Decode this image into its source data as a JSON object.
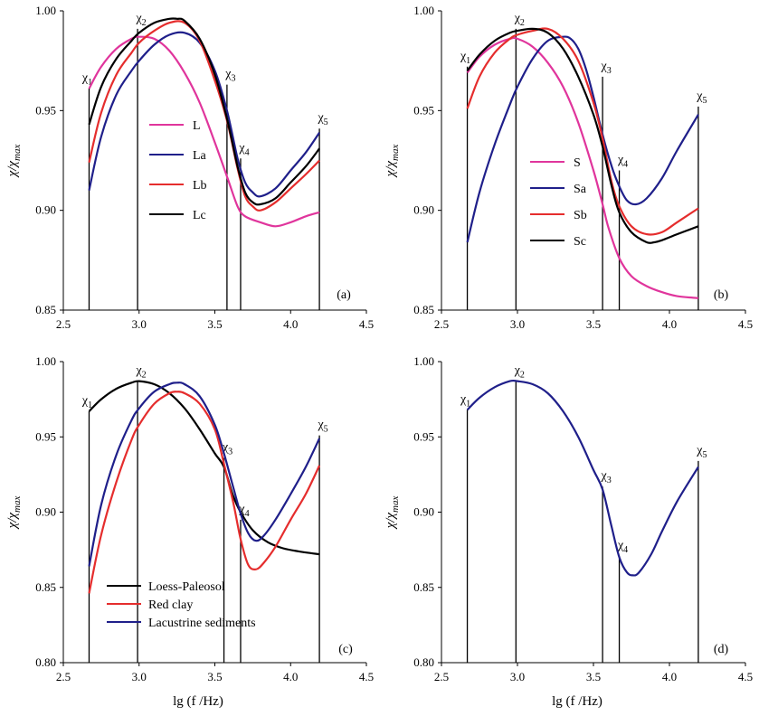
{
  "figure": {
    "x_axis_title": "lg (f /Hz)",
    "y_axis_title": "χ/χmax"
  },
  "chart_data": [
    {
      "type": "line",
      "panel_label": "(a)",
      "xlim": [
        2.5,
        4.5
      ],
      "ylim": [
        0.85,
        1.0
      ],
      "x_ticks": [
        "2.5",
        "3.0",
        "3.5",
        "4.0",
        "4.5"
      ],
      "y_ticks": [
        "0.85",
        "0.90",
        "0.95",
        "1.00"
      ],
      "legend_position": "center-left",
      "markers": [
        {
          "label": "χ1",
          "x": 2.67,
          "top": 0.961
        },
        {
          "label": "χ2",
          "x": 2.99,
          "top": 0.991
        },
        {
          "label": "χ3",
          "x": 3.58,
          "top": 0.963
        },
        {
          "label": "χ4",
          "x": 3.67,
          "top": 0.926
        },
        {
          "label": "χ5",
          "x": 4.19,
          "top": 0.941
        }
      ],
      "series": [
        {
          "name": "L",
          "color": "#e0359c",
          "x": [
            2.67,
            2.75,
            2.85,
            2.95,
            3.0,
            3.1,
            3.2,
            3.3,
            3.4,
            3.5,
            3.58,
            3.65,
            3.7,
            3.8,
            3.9,
            4.0,
            4.1,
            4.19
          ],
          "y": [
            0.961,
            0.972,
            0.981,
            0.986,
            0.987,
            0.986,
            0.98,
            0.969,
            0.954,
            0.934,
            0.917,
            0.902,
            0.897,
            0.894,
            0.892,
            0.894,
            0.897,
            0.899
          ]
        },
        {
          "name": "La",
          "color": "#1f1f8a",
          "x": [
            2.67,
            2.75,
            2.85,
            2.95,
            3.0,
            3.1,
            3.2,
            3.3,
            3.4,
            3.5,
            3.58,
            3.65,
            3.7,
            3.75,
            3.8,
            3.9,
            4.0,
            4.1,
            4.19
          ],
          "y": [
            0.91,
            0.937,
            0.958,
            0.97,
            0.975,
            0.983,
            0.988,
            0.989,
            0.984,
            0.97,
            0.95,
            0.926,
            0.914,
            0.909,
            0.907,
            0.911,
            0.92,
            0.929,
            0.939
          ]
        },
        {
          "name": "Lb",
          "color": "#e52d2d",
          "x": [
            2.67,
            2.75,
            2.85,
            2.95,
            3.0,
            3.1,
            3.2,
            3.3,
            3.4,
            3.5,
            3.58,
            3.65,
            3.7,
            3.75,
            3.8,
            3.9,
            4.0,
            4.1,
            4.19
          ],
          "y": [
            0.924,
            0.949,
            0.968,
            0.979,
            0.984,
            0.99,
            0.994,
            0.994,
            0.985,
            0.965,
            0.945,
            0.921,
            0.907,
            0.902,
            0.9,
            0.904,
            0.911,
            0.918,
            0.925
          ]
        },
        {
          "name": "Lc",
          "color": "#000000",
          "x": [
            2.67,
            2.75,
            2.85,
            2.95,
            3.0,
            3.1,
            3.2,
            3.25,
            3.3,
            3.4,
            3.5,
            3.58,
            3.65,
            3.7,
            3.75,
            3.8,
            3.9,
            4.0,
            4.1,
            4.19
          ],
          "y": [
            0.943,
            0.962,
            0.976,
            0.985,
            0.989,
            0.994,
            0.996,
            0.996,
            0.995,
            0.986,
            0.968,
            0.946,
            0.922,
            0.909,
            0.904,
            0.903,
            0.906,
            0.914,
            0.922,
            0.931
          ]
        }
      ]
    },
    {
      "type": "line",
      "panel_label": "(b)",
      "xlim": [
        2.5,
        4.5
      ],
      "ylim": [
        0.85,
        1.0
      ],
      "x_ticks": [
        "2.5",
        "3.0",
        "3.5",
        "4.0",
        "4.5"
      ],
      "y_ticks": [
        "0.85",
        "0.90",
        "0.95",
        "1.00"
      ],
      "legend_position": "bottom-center",
      "markers": [
        {
          "label": "χ1",
          "x": 2.67,
          "top": 0.972
        },
        {
          "label": "χ2",
          "x": 2.99,
          "top": 0.991
        },
        {
          "label": "χ3",
          "x": 3.56,
          "top": 0.967
        },
        {
          "label": "χ4",
          "x": 3.67,
          "top": 0.92
        },
        {
          "label": "χ5",
          "x": 4.19,
          "top": 0.952
        }
      ],
      "series": [
        {
          "name": "S",
          "color": "#e0359c",
          "x": [
            2.67,
            2.75,
            2.85,
            2.95,
            3.0,
            3.1,
            3.2,
            3.3,
            3.4,
            3.5,
            3.56,
            3.6,
            3.67,
            3.75,
            3.85,
            3.95,
            4.05,
            4.19
          ],
          "y": [
            0.969,
            0.977,
            0.983,
            0.986,
            0.986,
            0.982,
            0.974,
            0.962,
            0.944,
            0.92,
            0.903,
            0.891,
            0.876,
            0.867,
            0.862,
            0.859,
            0.857,
            0.856
          ]
        },
        {
          "name": "Sa",
          "color": "#1f1f8a",
          "x": [
            2.67,
            2.75,
            2.85,
            2.95,
            3.0,
            3.1,
            3.2,
            3.3,
            3.35,
            3.4,
            3.45,
            3.5,
            3.56,
            3.62,
            3.67,
            3.72,
            3.78,
            3.85,
            3.95,
            4.05,
            4.19
          ],
          "y": [
            0.884,
            0.909,
            0.933,
            0.953,
            0.962,
            0.976,
            0.985,
            0.987,
            0.986,
            0.981,
            0.971,
            0.957,
            0.938,
            0.922,
            0.912,
            0.905,
            0.903,
            0.906,
            0.916,
            0.93,
            0.948
          ]
        },
        {
          "name": "Sb",
          "color": "#e52d2d",
          "x": [
            2.67,
            2.75,
            2.85,
            2.95,
            3.0,
            3.1,
            3.2,
            3.3,
            3.4,
            3.5,
            3.56,
            3.62,
            3.67,
            3.75,
            3.85,
            3.95,
            4.05,
            4.19
          ],
          "y": [
            0.951,
            0.967,
            0.979,
            0.986,
            0.988,
            0.99,
            0.991,
            0.986,
            0.975,
            0.954,
            0.936,
            0.914,
            0.902,
            0.892,
            0.888,
            0.889,
            0.894,
            0.901
          ]
        },
        {
          "name": "Sc",
          "color": "#000000",
          "x": [
            2.67,
            2.75,
            2.85,
            2.95,
            3.0,
            3.1,
            3.2,
            3.3,
            3.4,
            3.5,
            3.56,
            3.62,
            3.67,
            3.75,
            3.85,
            3.9,
            3.95,
            4.05,
            4.19
          ],
          "y": [
            0.97,
            0.978,
            0.985,
            0.989,
            0.99,
            0.991,
            0.989,
            0.981,
            0.967,
            0.948,
            0.932,
            0.912,
            0.899,
            0.889,
            0.884,
            0.884,
            0.885,
            0.888,
            0.892
          ]
        }
      ]
    },
    {
      "type": "line",
      "panel_label": "(c)",
      "xlim": [
        2.5,
        4.5
      ],
      "ylim": [
        0.8,
        1.0
      ],
      "x_ticks": [
        "2.5",
        "3.0",
        "3.5",
        "4.0",
        "4.5"
      ],
      "y_ticks": [
        "0.80",
        "0.85",
        "0.90",
        "0.95",
        "1.00"
      ],
      "legend_position": "bottom-left",
      "markers": [
        {
          "label": "χ1",
          "x": 2.67,
          "top": 0.967
        },
        {
          "label": "χ2",
          "x": 2.99,
          "top": 0.987
        },
        {
          "label": "χ3",
          "x": 3.56,
          "top": 0.936
        },
        {
          "label": "χ4",
          "x": 3.67,
          "top": 0.895
        },
        {
          "label": "χ5",
          "x": 4.19,
          "top": 0.951
        }
      ],
      "series": [
        {
          "name": "Loess-Paleosol",
          "color": "#000000",
          "x": [
            2.67,
            2.75,
            2.85,
            2.95,
            3.0,
            3.1,
            3.2,
            3.3,
            3.4,
            3.5,
            3.56,
            3.62,
            3.67,
            3.75,
            3.85,
            3.95,
            4.05,
            4.19
          ],
          "y": [
            0.967,
            0.975,
            0.982,
            0.986,
            0.987,
            0.985,
            0.979,
            0.969,
            0.955,
            0.939,
            0.93,
            0.911,
            0.9,
            0.888,
            0.88,
            0.876,
            0.874,
            0.872
          ]
        },
        {
          "name": "Red clay",
          "color": "#e52d2d",
          "x": [
            2.67,
            2.75,
            2.85,
            2.95,
            3.0,
            3.1,
            3.2,
            3.25,
            3.3,
            3.4,
            3.5,
            3.56,
            3.62,
            3.67,
            3.72,
            3.77,
            3.82,
            3.9,
            4.0,
            4.1,
            4.19
          ],
          "y": [
            0.846,
            0.885,
            0.92,
            0.948,
            0.958,
            0.972,
            0.979,
            0.98,
            0.979,
            0.972,
            0.955,
            0.932,
            0.907,
            0.882,
            0.865,
            0.862,
            0.866,
            0.877,
            0.895,
            0.912,
            0.931
          ]
        },
        {
          "name": "Lacustrine sediments",
          "color": "#1f1f8a",
          "x": [
            2.67,
            2.75,
            2.85,
            2.95,
            3.0,
            3.1,
            3.2,
            3.25,
            3.3,
            3.4,
            3.5,
            3.56,
            3.62,
            3.67,
            3.72,
            3.77,
            3.82,
            3.9,
            4.0,
            4.1,
            4.19
          ],
          "y": [
            0.864,
            0.905,
            0.938,
            0.961,
            0.969,
            0.98,
            0.985,
            0.986,
            0.985,
            0.977,
            0.958,
            0.939,
            0.917,
            0.899,
            0.886,
            0.881,
            0.884,
            0.895,
            0.912,
            0.93,
            0.949
          ]
        }
      ]
    },
    {
      "type": "line",
      "panel_label": "(d)",
      "xlim": [
        2.5,
        4.5
      ],
      "ylim": [
        0.8,
        1.0
      ],
      "x_ticks": [
        "2.5",
        "3.0",
        "3.5",
        "4.0",
        "4.5"
      ],
      "y_ticks": [
        "0.80",
        "0.85",
        "0.90",
        "0.95",
        "1.00"
      ],
      "legend_position": "none",
      "markers": [
        {
          "label": "χ1",
          "x": 2.67,
          "top": 0.968
        },
        {
          "label": "χ2",
          "x": 2.99,
          "top": 0.987
        },
        {
          "label": "χ3",
          "x": 3.56,
          "top": 0.917
        },
        {
          "label": "χ4",
          "x": 3.67,
          "top": 0.871
        },
        {
          "label": "χ5",
          "x": 4.19,
          "top": 0.934
        }
      ],
      "series": [
        {
          "name": "",
          "color": "#1f1f8a",
          "x": [
            2.67,
            2.75,
            2.85,
            2.95,
            3.0,
            3.1,
            3.2,
            3.3,
            3.4,
            3.5,
            3.56,
            3.62,
            3.67,
            3.72,
            3.76,
            3.8,
            3.88,
            3.95,
            4.05,
            4.19
          ],
          "y": [
            0.968,
            0.976,
            0.983,
            0.987,
            0.987,
            0.985,
            0.979,
            0.967,
            0.95,
            0.928,
            0.915,
            0.89,
            0.87,
            0.86,
            0.858,
            0.86,
            0.872,
            0.887,
            0.907,
            0.93
          ]
        }
      ]
    }
  ]
}
